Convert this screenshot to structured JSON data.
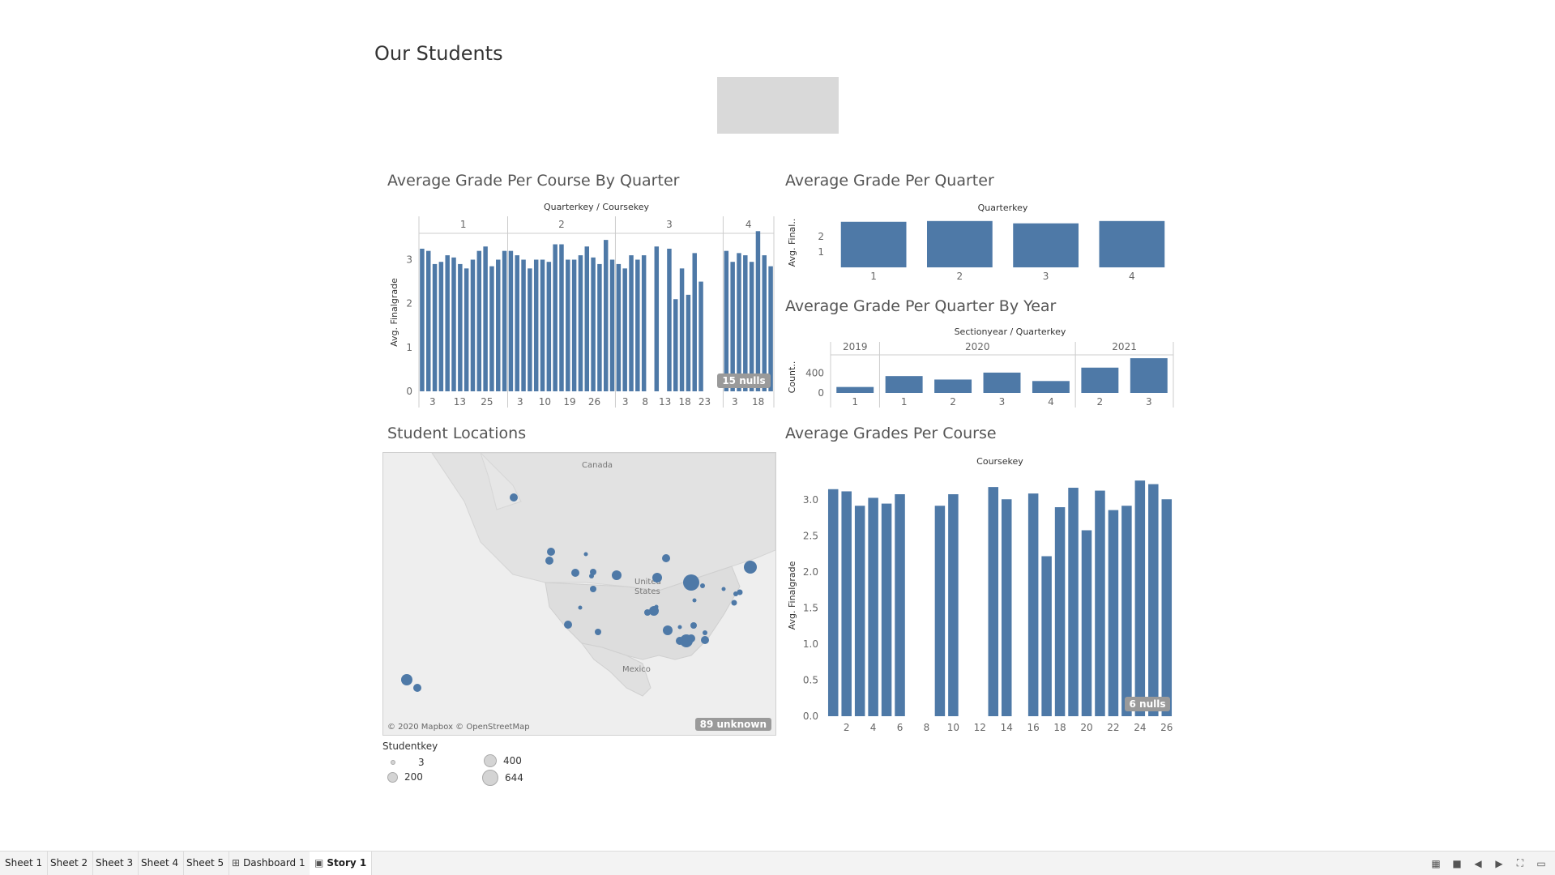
{
  "story": {
    "title": "Our Students"
  },
  "colors": {
    "bar": "#4e79a7",
    "axis": "#cccccc",
    "map_land": "#e8e8e8",
    "map_dot": "#4e79a7"
  },
  "chart_data": [
    {
      "id": "grade-per-course-by-quarter",
      "type": "bar",
      "title": "Average Grade Per Course By Quarter",
      "header_label": "Quarterkey / Coursekey",
      "ylabel": "Avg. Finalgrade",
      "ylim": [
        0,
        3.6
      ],
      "yticks": [
        0,
        1,
        2,
        3
      ],
      "null_badge": "15 nulls",
      "panels": [
        {
          "quarter": "1",
          "x_ticks": [
            "3",
            "13",
            "25"
          ],
          "values": [
            3.25,
            3.2,
            2.9,
            2.95,
            3.1,
            3.05,
            2.9,
            2.8,
            3.0,
            3.2,
            3.3,
            2.85,
            3.0,
            3.2
          ]
        },
        {
          "quarter": "2",
          "x_ticks": [
            "3",
            "10",
            "19",
            "26"
          ],
          "values": [
            3.2,
            3.1,
            3.0,
            2.8,
            3.0,
            3.0,
            2.95,
            3.35,
            3.35,
            3.0,
            3.0,
            3.1,
            3.3,
            3.05,
            2.9,
            3.45,
            3.0
          ]
        },
        {
          "quarter": "3",
          "x_ticks": [
            "3",
            "8",
            "13",
            "18",
            "23"
          ],
          "values": [
            2.9,
            2.8,
            3.1,
            3.0,
            3.1,
            null,
            3.3,
            null,
            3.25,
            2.1,
            2.8,
            2.2,
            3.15,
            2.5,
            null,
            null,
            null
          ]
        },
        {
          "quarter": "4",
          "x_ticks": [
            "3",
            "18"
          ],
          "values": [
            3.2,
            2.95,
            3.15,
            3.1,
            2.95,
            3.65,
            3.1,
            2.85
          ]
        }
      ]
    },
    {
      "id": "grade-per-quarter",
      "type": "bar",
      "title": "Average Grade Per Quarter",
      "header_label": "Quarterkey",
      "ylabel": "Avg. Final..",
      "ylim": [
        0,
        3.2
      ],
      "yticks": [
        1,
        2
      ],
      "categories": [
        "1",
        "2",
        "3",
        "4"
      ],
      "values": [
        2.95,
        3.0,
        2.85,
        3.0
      ]
    },
    {
      "id": "grade-per-quarter-by-year",
      "type": "bar",
      "title": "Average Grade Per Quarter By Year",
      "header_label": "Sectionyear / Quarterkey",
      "ylabel": "Count..",
      "ylim": [
        0,
        800
      ],
      "yticks": [
        0,
        400
      ],
      "years": [
        {
          "year": "2019",
          "categories": [
            "1"
          ],
          "values": [
            120
          ]
        },
        {
          "year": "2020",
          "categories": [
            "1",
            "2",
            "3",
            "4"
          ],
          "values": [
            340,
            270,
            410,
            240
          ]
        },
        {
          "year": "2021",
          "categories": [
            "2",
            "3"
          ],
          "values": [
            510,
            700
          ]
        }
      ]
    },
    {
      "id": "grades-per-course",
      "type": "bar",
      "title": "Average Grades Per Course",
      "header_label": "Coursekey",
      "ylabel": "Avg. Finalgrade",
      "ylim": [
        0,
        3.35
      ],
      "yticks": [
        "0.0",
        "0.5",
        "1.0",
        "1.5",
        "2.0",
        "2.5",
        "3.0"
      ],
      "x_ticks": [
        "2",
        "4",
        "6",
        "8",
        "10",
        "12",
        "14",
        "16",
        "18",
        "20",
        "22",
        "24",
        "26"
      ],
      "categories": [
        "1",
        "2",
        "3",
        "4",
        "5",
        "6",
        "7",
        "8",
        "9",
        "10",
        "11",
        "12",
        "13",
        "14",
        "15",
        "16",
        "17",
        "18",
        "19",
        "20",
        "21",
        "22",
        "23",
        "24",
        "25",
        "26"
      ],
      "values": [
        3.15,
        3.12,
        2.92,
        3.03,
        2.95,
        3.08,
        null,
        null,
        2.92,
        3.08,
        null,
        null,
        3.18,
        3.01,
        null,
        3.09,
        2.22,
        2.9,
        3.17,
        2.58,
        3.13,
        2.86,
        2.92,
        3.27,
        3.22,
        3.01
      ],
      "null_badge": "6 nulls"
    }
  ],
  "map": {
    "title": "Student Locations",
    "labels": {
      "canada": "Canada",
      "us": "United States",
      "us_line1": "United",
      "us_line2": "States",
      "mexico": "Mexico"
    },
    "attribution": "© 2020 Mapbox © OpenStreetMap",
    "unknown_badge": "89 unknown"
  },
  "legend": {
    "title": "Studentkey",
    "items": [
      {
        "label": "3",
        "size": 4
      },
      {
        "label": "400",
        "size": 16
      },
      {
        "label": "200",
        "size": 12
      },
      {
        "label": "644",
        "size": 20
      }
    ]
  },
  "tabs": [
    {
      "label": "Sheet 1",
      "icon": ""
    },
    {
      "label": "Sheet 2",
      "icon": ""
    },
    {
      "label": "Sheet 3",
      "icon": ""
    },
    {
      "label": "Sheet 4",
      "icon": ""
    },
    {
      "label": "Sheet 5",
      "icon": ""
    },
    {
      "label": "Dashboard 1",
      "icon": "dashboard-icon"
    },
    {
      "label": "Story 1",
      "icon": "story-icon",
      "active": true
    }
  ],
  "status_icons": [
    "grid-view-icon",
    "film-strip-icon",
    "prev-icon",
    "next-icon",
    "fit-width-icon",
    "presentation-icon"
  ]
}
